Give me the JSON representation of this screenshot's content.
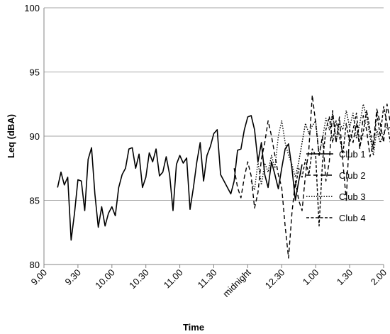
{
  "chart_data": {
    "type": "line",
    "title": "",
    "xlabel": "Time",
    "ylabel": "Leq (dBA)",
    "ylim": [
      80,
      100
    ],
    "xlim_hours": [
      9.0,
      26.0
    ],
    "y_ticks": [
      "80",
      "85",
      "90",
      "95",
      "100"
    ],
    "x_ticks": [
      {
        "label": "9.00",
        "hour": 9.0
      },
      {
        "label": "9.30",
        "hour": 9.5
      },
      {
        "label": "10.00",
        "hour": 10.0
      },
      {
        "label": "10.30",
        "hour": 10.5
      },
      {
        "label": "11.00",
        "hour": 11.0
      },
      {
        "label": "11.30",
        "hour": 11.5
      },
      {
        "label": "midnight",
        "hour": 12.0
      },
      {
        "label": "12.30",
        "hour": 12.5
      },
      {
        "label": "1.00",
        "hour": 13.0
      },
      {
        "label": "1.30",
        "hour": 13.5
      },
      {
        "label": "2.00",
        "hour": 14.0
      }
    ],
    "grid": "horizontal",
    "legend_position": "right",
    "series": [
      {
        "name": "Club 1",
        "dash": "solid",
        "points": [
          [
            21.2,
            86.0
          ],
          [
            21.25,
            87.2
          ],
          [
            21.3,
            86.2
          ],
          [
            21.35,
            86.8
          ],
          [
            21.4,
            81.9
          ],
          [
            21.45,
            84.0
          ],
          [
            21.5,
            86.6
          ],
          [
            21.55,
            86.5
          ],
          [
            21.6,
            84.2
          ],
          [
            21.65,
            88.2
          ],
          [
            21.7,
            89.1
          ],
          [
            21.75,
            85.5
          ],
          [
            21.8,
            82.9
          ],
          [
            21.85,
            84.5
          ],
          [
            21.9,
            83.0
          ],
          [
            21.95,
            84.0
          ],
          [
            22.0,
            84.5
          ],
          [
            22.05,
            83.8
          ],
          [
            22.1,
            86.0
          ],
          [
            22.15,
            87.0
          ],
          [
            22.2,
            87.5
          ],
          [
            22.25,
            89.0
          ],
          [
            22.3,
            89.1
          ],
          [
            22.35,
            87.5
          ],
          [
            22.4,
            88.6
          ],
          [
            22.45,
            86.0
          ],
          [
            22.5,
            86.8
          ],
          [
            22.55,
            88.7
          ],
          [
            22.6,
            88.0
          ],
          [
            22.65,
            89.0
          ],
          [
            22.7,
            86.9
          ],
          [
            22.75,
            87.2
          ],
          [
            22.8,
            88.4
          ],
          [
            22.85,
            87.0
          ],
          [
            22.9,
            84.2
          ],
          [
            22.95,
            87.8
          ],
          [
            23.0,
            88.5
          ],
          [
            23.05,
            87.9
          ],
          [
            23.1,
            88.3
          ],
          [
            23.15,
            84.3
          ],
          [
            23.2,
            86.0
          ],
          [
            23.25,
            88.0
          ],
          [
            23.3,
            89.5
          ],
          [
            23.35,
            86.5
          ],
          [
            23.4,
            88.5
          ],
          [
            23.45,
            89.2
          ],
          [
            23.5,
            90.2
          ],
          [
            23.55,
            90.5
          ],
          [
            23.6,
            87.0
          ],
          [
            23.65,
            86.5
          ],
          [
            23.7,
            86.0
          ],
          [
            23.75,
            85.5
          ],
          [
            23.8,
            86.5
          ],
          [
            23.85,
            88.9
          ],
          [
            23.9,
            89.0
          ],
          [
            23.95,
            90.5
          ],
          [
            24.0,
            91.5
          ],
          [
            24.05,
            91.6
          ],
          [
            24.1,
            90.5
          ],
          [
            24.15,
            88.0
          ],
          [
            24.2,
            89.5
          ],
          [
            24.25,
            87.0
          ],
          [
            24.3,
            86.0
          ],
          [
            24.35,
            88.0
          ],
          [
            24.4,
            87.0
          ],
          [
            24.45,
            85.9
          ],
          [
            24.5,
            87.5
          ],
          [
            24.55,
            89.0
          ],
          [
            24.6,
            89.4
          ],
          [
            24.65,
            87.5
          ],
          [
            24.7,
            85.0
          ],
          [
            24.75,
            86.5
          ],
          [
            24.8,
            87.8
          ]
        ]
      },
      {
        "name": "Club 2",
        "dash": "dashed",
        "points": [
          [
            23.8,
            87.5
          ],
          [
            23.85,
            86.0
          ],
          [
            23.9,
            85.2
          ],
          [
            23.95,
            86.8
          ],
          [
            24.0,
            88.0
          ],
          [
            24.05,
            86.9
          ],
          [
            24.1,
            84.4
          ],
          [
            24.15,
            85.6
          ],
          [
            24.2,
            88.2
          ],
          [
            24.25,
            89.5
          ],
          [
            24.3,
            91.2
          ],
          [
            24.35,
            90.0
          ],
          [
            24.4,
            88.5
          ],
          [
            24.45,
            87.0
          ],
          [
            24.5,
            86.0
          ],
          [
            24.55,
            83.0
          ],
          [
            24.6,
            80.5
          ],
          [
            24.65,
            84.0
          ],
          [
            24.7,
            86.5
          ],
          [
            24.75,
            85.0
          ],
          [
            24.8,
            84.2
          ],
          [
            24.85,
            87.0
          ],
          [
            24.9,
            89.0
          ],
          [
            24.95,
            93.2
          ],
          [
            25.0,
            91.0
          ],
          [
            25.05,
            88.5
          ],
          [
            25.1,
            90.0
          ],
          [
            25.15,
            86.5
          ],
          [
            25.2,
            88.0
          ],
          [
            25.25,
            92.0
          ],
          [
            25.3,
            89.5
          ],
          [
            25.35,
            91.5
          ],
          [
            25.4,
            88.0
          ],
          [
            25.45,
            85.0
          ],
          [
            25.5,
            90.5
          ],
          [
            25.55,
            89.5
          ],
          [
            25.6,
            91.0
          ],
          [
            25.65,
            89.0
          ],
          [
            25.7,
            91.6
          ],
          [
            25.75,
            90.5
          ],
          [
            25.8,
            88.4
          ],
          [
            25.85,
            89.5
          ],
          [
            25.9,
            92.1
          ],
          [
            25.95,
            91.0
          ],
          [
            26.0,
            89.5
          ],
          [
            26.05,
            92.5
          ],
          [
            26.1,
            91.0
          ],
          [
            26.15,
            90.2
          ],
          [
            26.2,
            92.8
          ],
          [
            26.25,
            91.5
          ]
        ]
      },
      {
        "name": "Club 3",
        "dash": "dotted",
        "points": [
          [
            24.05,
            86.5
          ],
          [
            24.1,
            85.8
          ],
          [
            24.15,
            88.0
          ],
          [
            24.2,
            86.2
          ],
          [
            24.25,
            87.9
          ],
          [
            24.3,
            87.2
          ],
          [
            24.35,
            88.5
          ],
          [
            24.4,
            87.5
          ],
          [
            24.45,
            90.0
          ],
          [
            24.5,
            91.2
          ],
          [
            24.55,
            89.5
          ],
          [
            24.6,
            88.5
          ],
          [
            24.65,
            87.8
          ],
          [
            24.7,
            86.8
          ],
          [
            24.75,
            88.0
          ],
          [
            24.8,
            89.5
          ],
          [
            24.85,
            91.0
          ],
          [
            24.9,
            90.2
          ],
          [
            24.95,
            90.8
          ],
          [
            25.0,
            91.2
          ],
          [
            25.05,
            88.5
          ],
          [
            25.1,
            89.8
          ],
          [
            25.15,
            91.4
          ],
          [
            25.2,
            90.5
          ],
          [
            25.25,
            91.8
          ],
          [
            25.3,
            89.6
          ],
          [
            25.35,
            91.0
          ],
          [
            25.4,
            90.5
          ],
          [
            25.45,
            92.0
          ],
          [
            25.5,
            90.7
          ],
          [
            25.55,
            91.8
          ],
          [
            25.6,
            89.8
          ],
          [
            25.65,
            91.0
          ],
          [
            25.7,
            92.5
          ],
          [
            25.75,
            91.5
          ],
          [
            25.8,
            90.0
          ],
          [
            25.85,
            88.5
          ],
          [
            25.9,
            90.5
          ],
          [
            25.95,
            89.5
          ],
          [
            26.0,
            90.2
          ],
          [
            26.05,
            90.8
          ],
          [
            26.1,
            90.6
          ],
          [
            26.15,
            89.4
          ],
          [
            26.2,
            91.0
          ],
          [
            26.25,
            90.6
          ],
          [
            26.3,
            88.8
          ],
          [
            26.35,
            89.5
          ],
          [
            26.4,
            91.5
          ],
          [
            26.45,
            91.0
          ],
          [
            26.5,
            90.8
          ]
        ]
      },
      {
        "name": "Club 4",
        "dash": "short-dashed",
        "points": [
          [
            24.7,
            86.0
          ],
          [
            24.75,
            87.5
          ],
          [
            24.8,
            86.8
          ],
          [
            24.85,
            88.2
          ],
          [
            24.9,
            87.0
          ],
          [
            24.95,
            89.0
          ],
          [
            25.0,
            88.5
          ],
          [
            25.05,
            83.0
          ],
          [
            25.1,
            88.0
          ],
          [
            25.15,
            90.5
          ],
          [
            25.2,
            91.5
          ],
          [
            25.25,
            89.5
          ],
          [
            25.3,
            91.2
          ],
          [
            25.35,
            90.0
          ],
          [
            25.4,
            88.6
          ],
          [
            25.45,
            91.0
          ],
          [
            25.5,
            89.5
          ],
          [
            25.55,
            90.5
          ],
          [
            25.6,
            91.8
          ],
          [
            25.65,
            89.2
          ],
          [
            25.7,
            90.3
          ],
          [
            25.75,
            92.0
          ],
          [
            25.8,
            90.5
          ],
          [
            25.85,
            89.0
          ],
          [
            25.9,
            91.8
          ],
          [
            25.95,
            90.0
          ],
          [
            26.0,
            92.3
          ],
          [
            26.05,
            91.0
          ],
          [
            26.1,
            89.5
          ],
          [
            26.15,
            90.4
          ],
          [
            26.2,
            91.7
          ],
          [
            26.25,
            89.7
          ],
          [
            26.3,
            92.0
          ],
          [
            26.35,
            90.2
          ],
          [
            26.4,
            91.1
          ],
          [
            26.45,
            89.8
          ],
          [
            26.5,
            90.5
          ]
        ]
      }
    ]
  }
}
